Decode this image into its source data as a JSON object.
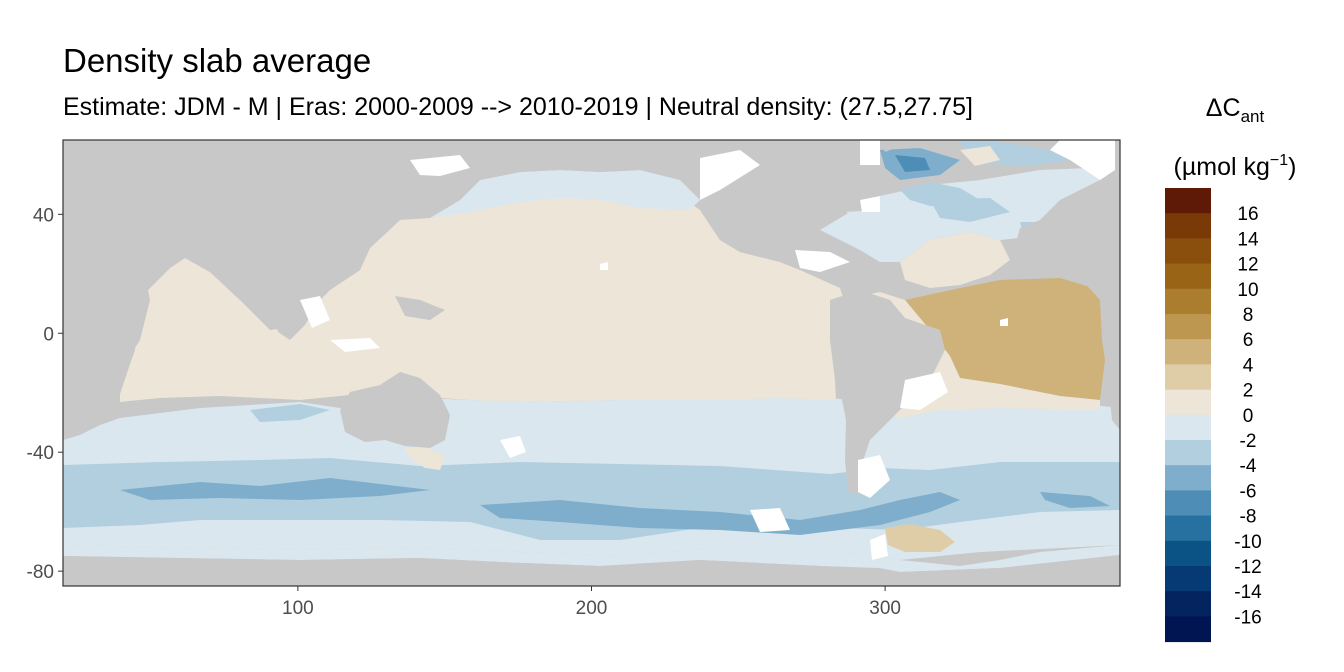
{
  "title": "Density slab average",
  "subtitle": "Estimate: JDM - M | Eras: 2000-2009 --> 2010-2019 | Neutral density: (27.5,27.75]",
  "legend": {
    "symbol": "ΔC",
    "subscript": "ant",
    "unit_main": "(µmol kg",
    "unit_sup": "−1",
    "unit_close": ")",
    "bins": [
      {
        "label": "16",
        "color": "#5e1a06"
      },
      {
        "label": "14",
        "color": "#7a3a08"
      },
      {
        "label": "12",
        "color": "#8a4f0c"
      },
      {
        "label": "10",
        "color": "#9a6416"
      },
      {
        "label": "8",
        "color": "#ab7d2e"
      },
      {
        "label": "6",
        "color": "#bd9750"
      },
      {
        "label": "4",
        "color": "#cfb17a"
      },
      {
        "label": "2",
        "color": "#dfcda8"
      },
      {
        "label": "0",
        "color": "#ece5d8"
      },
      {
        "label": "-2",
        "color": "#dbe7ef"
      },
      {
        "label": "-4",
        "color": "#b2cfe0"
      },
      {
        "label": "-6",
        "color": "#7eaecb"
      },
      {
        "label": "-8",
        "color": "#4d8db6"
      },
      {
        "label": "-10",
        "color": "#26719f"
      },
      {
        "label": "-12",
        "color": "#0b5285"
      },
      {
        "label": "-14",
        "color": "#063a75"
      },
      {
        "label": "-16",
        "color": "#03245f"
      },
      {
        "label": "",
        "color": "#021553"
      }
    ]
  },
  "map": {
    "colors": {
      "land": "#c8c8c8",
      "nodata": "#ffffff",
      "frame": "#333333"
    },
    "x_axis": {
      "range": [
        20,
        380
      ],
      "ticks": [
        "100",
        "200",
        "300"
      ],
      "tick_values": [
        100,
        200,
        300
      ]
    },
    "y_axis": {
      "range": [
        -85,
        65
      ],
      "ticks": [
        "40",
        "0",
        "-40",
        "-80"
      ],
      "tick_values": [
        40,
        0,
        -40,
        -80
      ]
    }
  }
}
